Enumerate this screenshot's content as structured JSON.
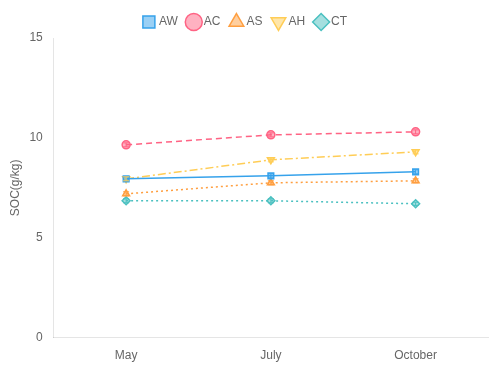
{
  "chart_data": {
    "type": "line",
    "ylabel": "SOC(g/kg)",
    "categories": [
      "May",
      "July",
      "October"
    ],
    "series": [
      {
        "name": "AW",
        "values": [
          7.95,
          8.1,
          8.3
        ],
        "errors": [
          0.1,
          0.1,
          0.1
        ],
        "marker": "square",
        "line_style": "solid"
      },
      {
        "name": "AC",
        "values": [
          9.65,
          10.15,
          10.3
        ],
        "errors": [
          0.1,
          0.1,
          0.1
        ],
        "marker": "circle",
        "line_style": "dashed"
      },
      {
        "name": "AS",
        "values": [
          7.2,
          7.75,
          7.85
        ],
        "errors": [
          0.1,
          0.1,
          0.1
        ],
        "marker": "triangle-up",
        "line_style": "dotted"
      },
      {
        "name": "AH",
        "values": [
          7.95,
          8.9,
          9.3
        ],
        "errors": [
          0.1,
          0.1,
          0.1
        ],
        "marker": "triangle-down",
        "line_style": "dashdot"
      },
      {
        "name": "CT",
        "values": [
          6.85,
          6.85,
          6.7
        ],
        "errors": [
          0.1,
          0.1,
          0.08
        ],
        "marker": "diamond",
        "line_style": "dotted"
      }
    ],
    "ylim": [
      0,
      15
    ],
    "yticks": [
      0,
      5,
      10,
      15
    ],
    "grid": false,
    "legend": "top"
  }
}
